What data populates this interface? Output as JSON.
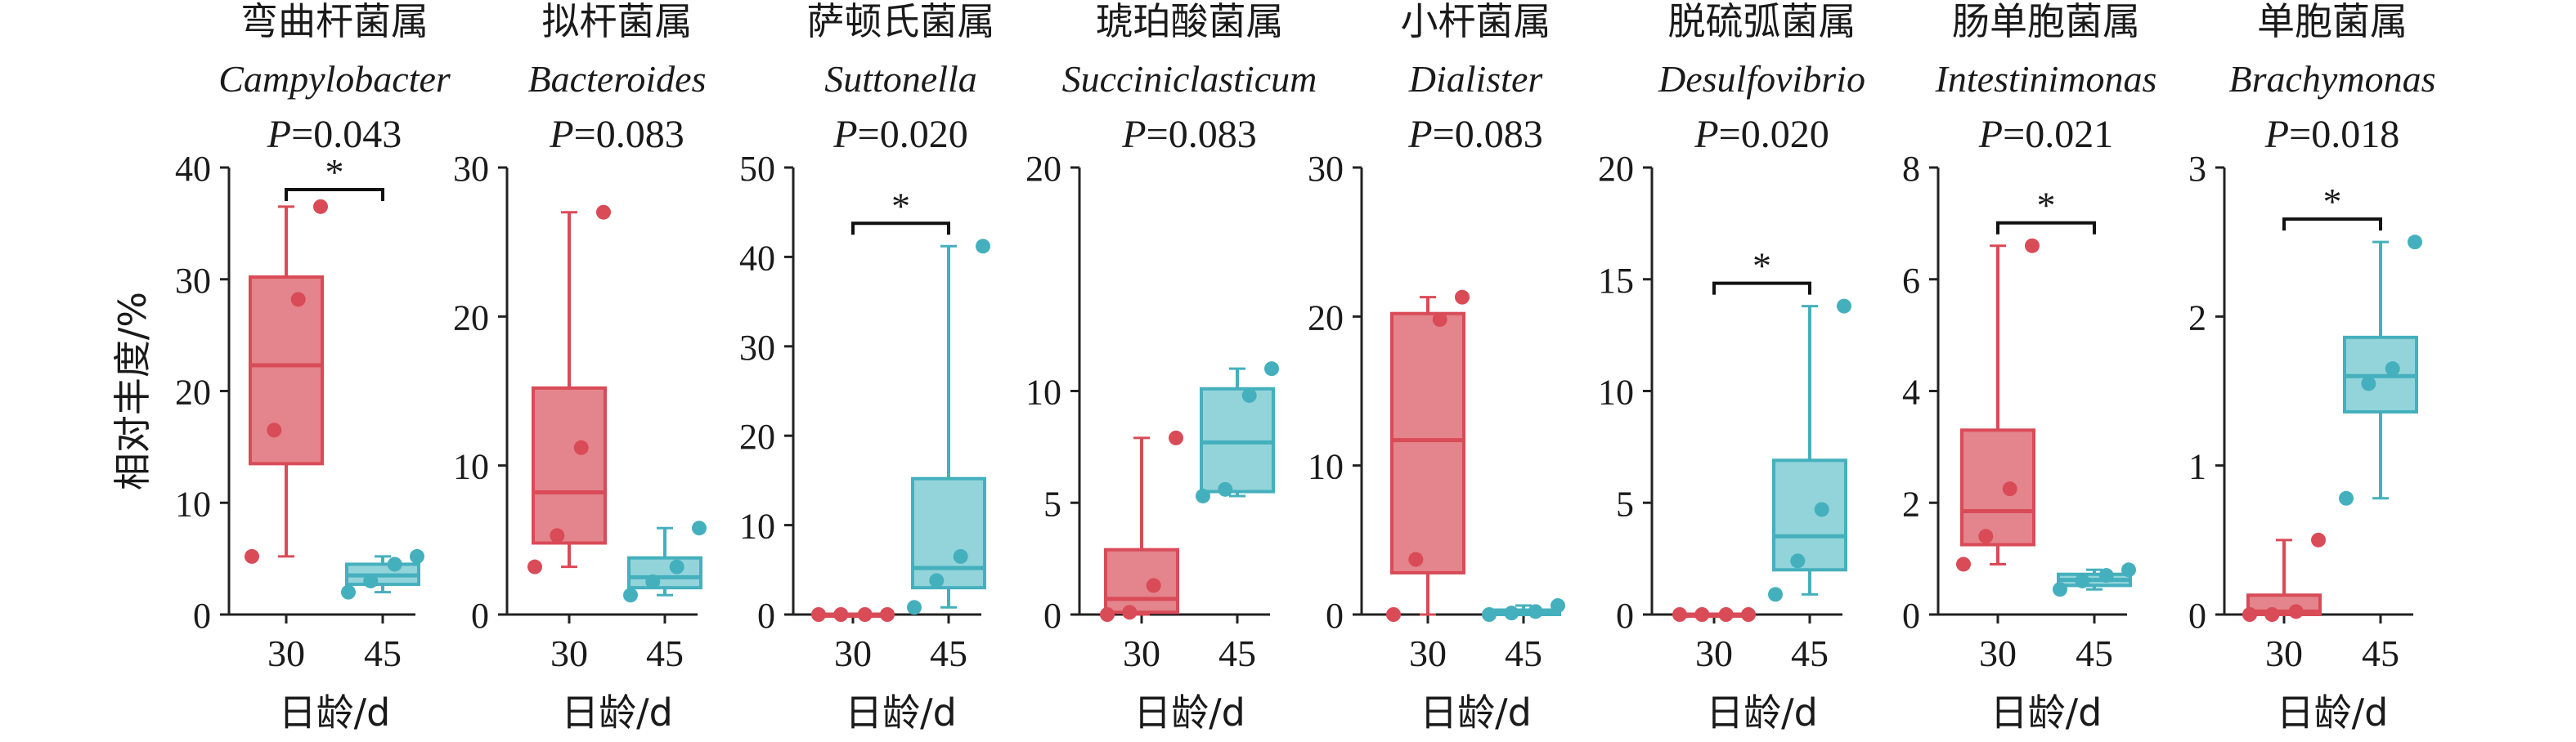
{
  "chart_data": [
    {
      "type": "box",
      "panel_index": 0,
      "title_cn": "弯曲杆菌属",
      "title_latin": "Campylobacter",
      "p_label": "P",
      "p_value": "=0.043",
      "significance": "*",
      "ylabel": "相对丰度/%",
      "xlabel": "日龄/d",
      "ylim": [
        0,
        40
      ],
      "yticks": [
        "0",
        "10",
        "20",
        "30",
        "40"
      ],
      "categories": [
        "30",
        "45"
      ],
      "series": [
        {
          "name": "30",
          "color": "#d94b57",
          "q1": 13.5,
          "median": 22.3,
          "q3": 30.2,
          "whisker_low": 5.2,
          "whisker_high": 36.5,
          "points": [
            5.2,
            16.5,
            28.2,
            36.5
          ]
        },
        {
          "name": "45",
          "color": "#45b0bd",
          "q1": 2.7,
          "median": 3.5,
          "q3": 4.5,
          "whisker_low": 2.0,
          "whisker_high": 5.2,
          "points": [
            2.0,
            3.0,
            4.5,
            5.2
          ]
        }
      ]
    },
    {
      "type": "box",
      "panel_index": 1,
      "title_cn": "拟杆菌属",
      "title_latin": "Bacteroides",
      "p_label": "P",
      "p_value": "=0.083",
      "significance": "",
      "xlabel": "日龄/d",
      "ylim": [
        0,
        30
      ],
      "yticks": [
        "0",
        "10",
        "20",
        "30"
      ],
      "categories": [
        "30",
        "45"
      ],
      "series": [
        {
          "name": "30",
          "color": "#d94b57",
          "q1": 4.8,
          "median": 8.2,
          "q3": 15.2,
          "whisker_low": 3.2,
          "whisker_high": 27.0,
          "points": [
            3.2,
            5.3,
            11.2,
            27.0
          ]
        },
        {
          "name": "45",
          "color": "#45b0bd",
          "q1": 1.8,
          "median": 2.5,
          "q3": 3.8,
          "whisker_low": 1.3,
          "whisker_high": 5.8,
          "points": [
            1.3,
            2.2,
            3.2,
            5.8
          ]
        }
      ]
    },
    {
      "type": "box",
      "panel_index": 2,
      "title_cn": "萨顿氏菌属",
      "title_latin": "Suttonella",
      "p_label": "P",
      "p_value": "=0.020",
      "significance": "*",
      "xlabel": "日龄/d",
      "ylim": [
        0,
        50
      ],
      "yticks": [
        "0",
        "10",
        "20",
        "30",
        "40",
        "50"
      ],
      "categories": [
        "30",
        "45"
      ],
      "series": [
        {
          "name": "30",
          "color": "#d94b57",
          "q1": 0,
          "median": 0,
          "q3": 0,
          "whisker_low": 0,
          "whisker_high": 0,
          "points": [
            0,
            0,
            0,
            0
          ]
        },
        {
          "name": "45",
          "color": "#45b0bd",
          "q1": 3.0,
          "median": 5.2,
          "q3": 15.2,
          "whisker_low": 0.8,
          "whisker_high": 41.2,
          "points": [
            0.8,
            3.8,
            6.5,
            41.2
          ]
        }
      ]
    },
    {
      "type": "box",
      "panel_index": 3,
      "title_cn": "琥珀酸菌属",
      "title_latin": "Succiniclasticum",
      "p_label": "P",
      "p_value": "=0.083",
      "significance": "",
      "xlabel": "日龄/d",
      "ylim": [
        0,
        20
      ],
      "yticks": [
        "0",
        "5",
        "10",
        "20"
      ],
      "categories": [
        "30",
        "45"
      ],
      "series": [
        {
          "name": "30",
          "color": "#d94b57",
          "q1": 0.1,
          "median": 0.7,
          "q3": 2.9,
          "whisker_low": 0,
          "whisker_high": 7.9,
          "points": [
            0,
            0.1,
            1.3,
            7.9
          ]
        },
        {
          "name": "45",
          "color": "#45b0bd",
          "q1": 5.5,
          "median": 7.7,
          "q3": 10.1,
          "whisker_low": 5.3,
          "whisker_high": 11.0,
          "points": [
            5.3,
            5.6,
            9.8,
            11.0
          ]
        }
      ]
    },
    {
      "type": "box",
      "panel_index": 4,
      "title_cn": "小杆菌属",
      "title_latin": "Dialister",
      "p_label": "P",
      "p_value": "=0.083",
      "significance": "",
      "xlabel": "日龄/d",
      "ylim": [
        0,
        30
      ],
      "yticks": [
        "0",
        "10",
        "20",
        "30"
      ],
      "categories": [
        "30",
        "45"
      ],
      "series": [
        {
          "name": "30",
          "color": "#d94b57",
          "q1": 2.8,
          "median": 11.7,
          "q3": 20.2,
          "whisker_low": 0,
          "whisker_high": 21.3,
          "points": [
            0,
            3.7,
            19.8,
            21.3
          ]
        },
        {
          "name": "45",
          "color": "#45b0bd",
          "q1": 0,
          "median": 0.1,
          "q3": 0.3,
          "whisker_low": 0,
          "whisker_high": 0.6,
          "points": [
            0,
            0.1,
            0.2,
            0.6
          ]
        }
      ]
    },
    {
      "type": "box",
      "panel_index": 5,
      "title_cn": "脱硫弧菌属",
      "title_latin": "Desulfovibrio",
      "p_label": "P",
      "p_value": "=0.020",
      "significance": "*",
      "xlabel": "日龄/d",
      "ylim": [
        0,
        20
      ],
      "yticks": [
        "0",
        "5",
        "10",
        "15",
        "20"
      ],
      "categories": [
        "30",
        "45"
      ],
      "series": [
        {
          "name": "30",
          "color": "#d94b57",
          "q1": 0,
          "median": 0,
          "q3": 0,
          "whisker_low": 0,
          "whisker_high": 0,
          "points": [
            0,
            0,
            0,
            0
          ]
        },
        {
          "name": "45",
          "color": "#45b0bd",
          "q1": 2.0,
          "median": 3.5,
          "q3": 6.9,
          "whisker_low": 0.9,
          "whisker_high": 13.8,
          "points": [
            0.9,
            2.4,
            4.7,
            13.8
          ]
        }
      ]
    },
    {
      "type": "box",
      "panel_index": 6,
      "title_cn": "肠单胞菌属",
      "title_latin": "Intestinimonas",
      "p_label": "P",
      "p_value": "=0.021",
      "significance": "*",
      "xlabel": "日龄/d",
      "ylim": [
        0,
        8
      ],
      "yticks": [
        "0",
        "2",
        "4",
        "6",
        "8"
      ],
      "categories": [
        "30",
        "45"
      ],
      "series": [
        {
          "name": "30",
          "color": "#d94b57",
          "q1": 1.25,
          "median": 1.85,
          "q3": 3.3,
          "whisker_low": 0.9,
          "whisker_high": 6.6,
          "points": [
            0.9,
            1.4,
            2.25,
            6.6
          ]
        },
        {
          "name": "45",
          "color": "#45b0bd",
          "q1": 0.52,
          "median": 0.62,
          "q3": 0.72,
          "whisker_low": 0.45,
          "whisker_high": 0.8,
          "points": [
            0.45,
            0.6,
            0.7,
            0.8
          ]
        }
      ]
    },
    {
      "type": "box",
      "panel_index": 7,
      "title_cn": "单胞菌属",
      "title_latin": "Brachymonas",
      "p_label": "P",
      "p_value": "=0.018",
      "significance": "*",
      "xlabel": "日龄/d",
      "ylim": [
        0,
        3
      ],
      "yticks": [
        "0",
        "1",
        "2",
        "3"
      ],
      "categories": [
        "30",
        "45"
      ],
      "series": [
        {
          "name": "30",
          "color": "#d94b57",
          "q1": 0,
          "median": 0.02,
          "q3": 0.13,
          "whisker_low": 0,
          "whisker_high": 0.5,
          "points": [
            0,
            0,
            0.02,
            0.5
          ]
        },
        {
          "name": "45",
          "color": "#45b0bd",
          "q1": 1.36,
          "median": 1.6,
          "q3": 1.86,
          "whisker_low": 0.78,
          "whisker_high": 2.5,
          "points": [
            0.78,
            1.55,
            1.65,
            2.5
          ]
        }
      ]
    }
  ]
}
